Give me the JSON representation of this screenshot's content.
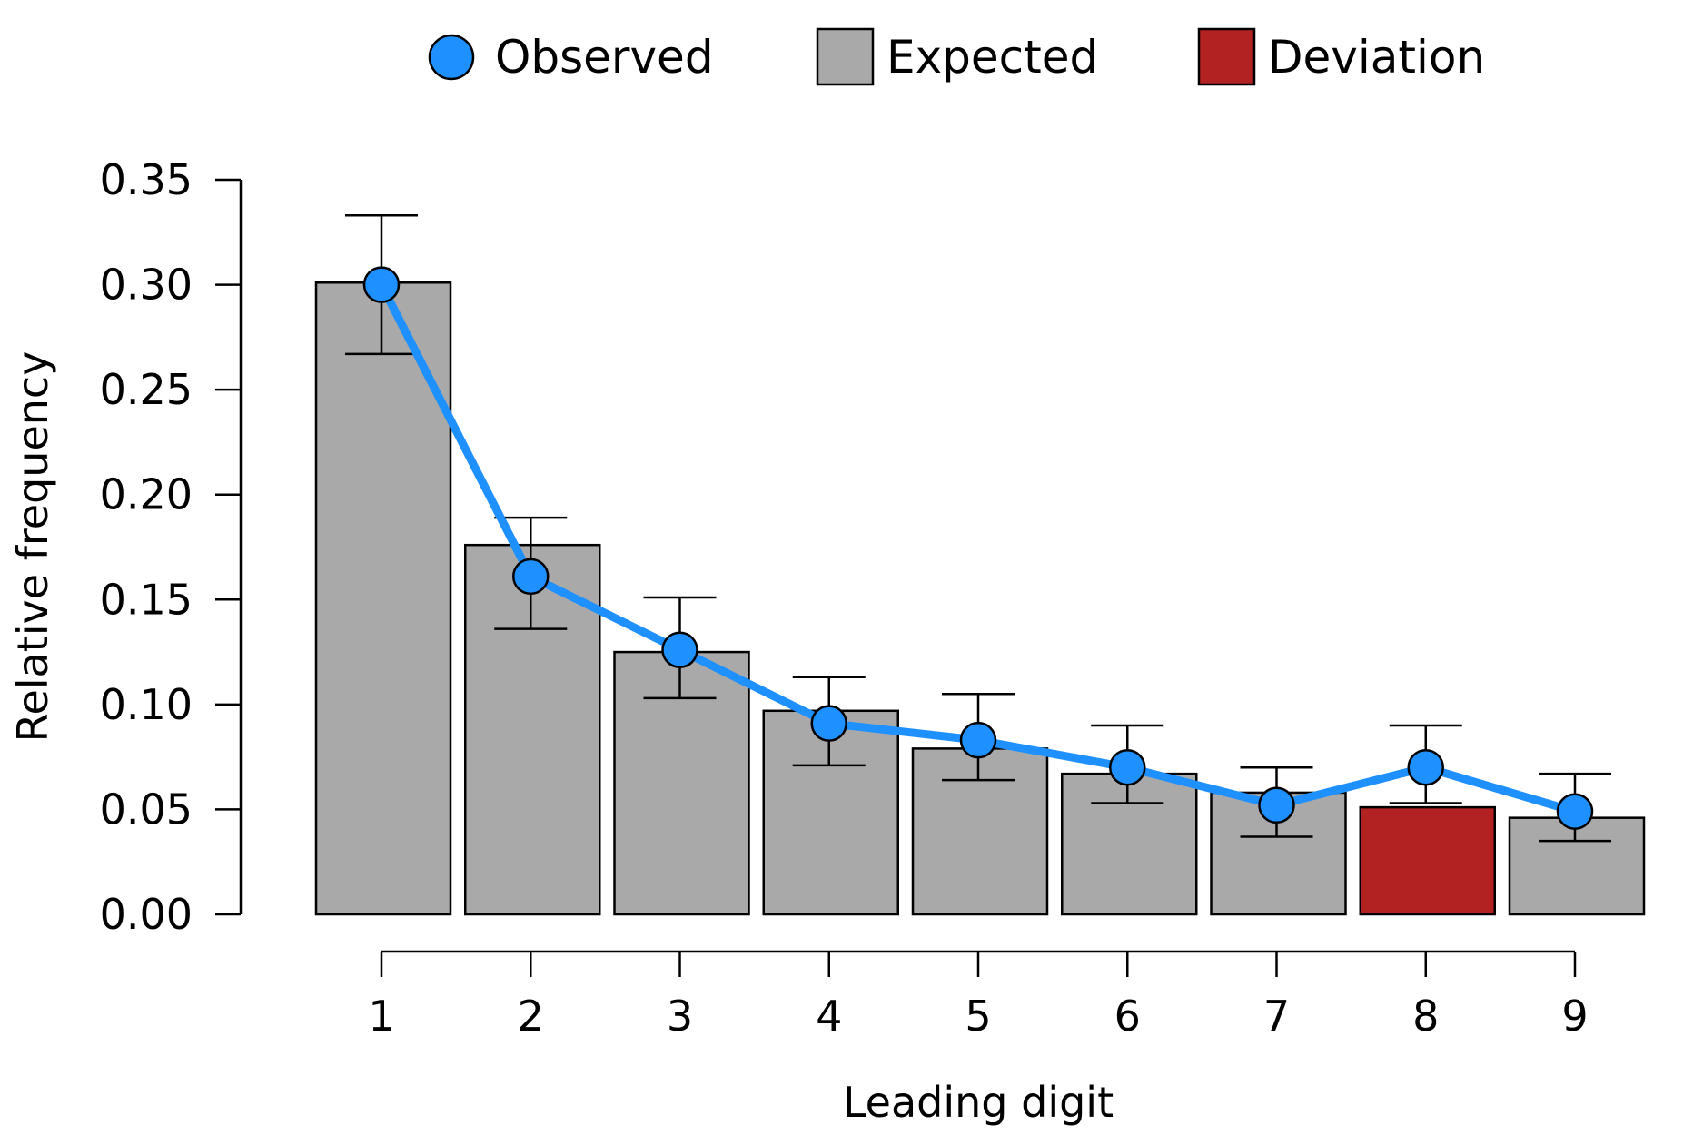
{
  "chart_data": {
    "type": "bar",
    "xlabel": "Leading digit",
    "ylabel": "Relative frequency",
    "ylim": [
      0,
      0.35
    ],
    "yticks": [
      "0.00",
      "0.05",
      "0.10",
      "0.15",
      "0.20",
      "0.25",
      "0.30",
      "0.35"
    ],
    "categories": [
      "1",
      "2",
      "3",
      "4",
      "5",
      "6",
      "7",
      "8",
      "9"
    ],
    "legend": {
      "placement": "top",
      "items": [
        {
          "label": "Observed",
          "marker": "circle",
          "color": "#1e90ff"
        },
        {
          "label": "Expected",
          "marker": "square",
          "color": "#a9a9a9"
        },
        {
          "label": "Deviation",
          "marker": "square",
          "color": "#b22222"
        }
      ]
    },
    "series": [
      {
        "name": "Expected",
        "type": "bar",
        "values": [
          0.301,
          0.176,
          0.125,
          0.097,
          0.079,
          0.067,
          0.058,
          0.051,
          0.046
        ],
        "deviation": [
          false,
          false,
          false,
          false,
          false,
          false,
          false,
          true,
          false
        ]
      },
      {
        "name": "Observed",
        "type": "line",
        "values": [
          0.3,
          0.161,
          0.126,
          0.091,
          0.083,
          0.07,
          0.052,
          0.07,
          0.049
        ],
        "error_lower": [
          0.267,
          0.136,
          0.103,
          0.071,
          0.064,
          0.053,
          0.037,
          0.053,
          0.035
        ],
        "error_upper": [
          0.333,
          0.189,
          0.151,
          0.113,
          0.105,
          0.09,
          0.07,
          0.09,
          0.067
        ]
      }
    ],
    "colors": {
      "bar": "#a9a9a9",
      "deviation": "#b22222",
      "observed": "#1e90ff",
      "axis": "#000000"
    },
    "grid": false
  }
}
